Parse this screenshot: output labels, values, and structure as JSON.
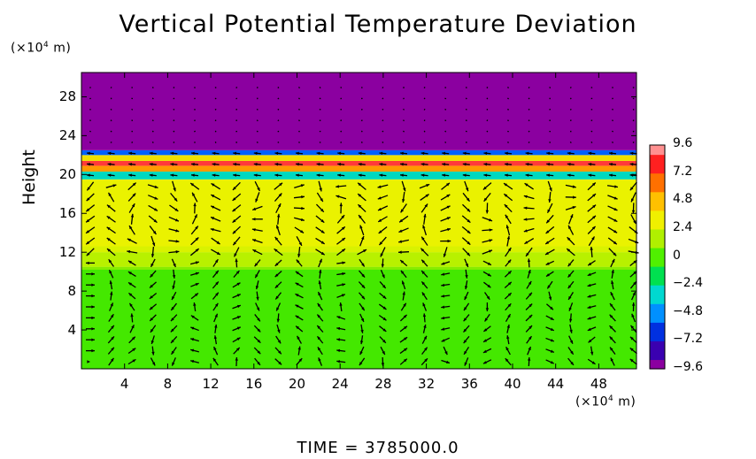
{
  "chart_data": {
    "type": "heatmap",
    "title": "Vertical Potential Temperature Deviation",
    "ylabel": "Height",
    "y_unit_label": "(×10⁴ m)",
    "x_unit_label": "(×10⁴ m)",
    "x_ticks": [
      "4",
      "8",
      "12",
      "16",
      "20",
      "24",
      "28",
      "32",
      "36",
      "40",
      "44",
      "48"
    ],
    "y_ticks": [
      "4",
      "8",
      "12",
      "16",
      "20",
      "24",
      "28"
    ],
    "xlim": [
      0,
      51.5
    ],
    "ylim": [
      0,
      30.5
    ],
    "colorbar": {
      "ticks": [
        "9.6",
        "7.2",
        "4.8",
        "2.4",
        "0",
        "−2.4",
        "−4.8",
        "−7.2",
        "−9.6"
      ],
      "range": [
        -9.6,
        9.6
      ],
      "colors": [
        "#8b00a0",
        "#3a00b0",
        "#0030e0",
        "#0090ff",
        "#00d8d0",
        "#00e050",
        "#50f000",
        "#b0f000",
        "#f0f000",
        "#ffc000",
        "#ff7000",
        "#ff2020",
        "#ff9090"
      ]
    },
    "bands": [
      {
        "y0": 0,
        "y1": 10.5,
        "value": 0.8,
        "color": "#44e800"
      },
      {
        "y0": 10.5,
        "y1": 12.0,
        "value": 2.0,
        "color": "#a8f000"
      },
      {
        "y0": 12.0,
        "y1": 19.5,
        "value": 3.6,
        "color": "#eaf200"
      },
      {
        "y0": 19.5,
        "y1": 20.3,
        "value": -2.0,
        "color": "#00d8c0"
      },
      {
        "y0": 20.3,
        "y1": 20.9,
        "value": 6.0,
        "color": "#ff9a00"
      },
      {
        "y0": 20.9,
        "y1": 21.4,
        "value": 8.4,
        "color": "#ff3a3a"
      },
      {
        "y0": 21.4,
        "y1": 22.0,
        "value": 4.4,
        "color": "#f0e000"
      },
      {
        "y0": 22.0,
        "y1": 22.5,
        "value": -4.0,
        "color": "#0060ff"
      },
      {
        "y0": 22.5,
        "y1": 30.5,
        "value": -9.6,
        "color": "#8b00a0"
      }
    ],
    "time_label": "TIME  =  3785000.0"
  }
}
